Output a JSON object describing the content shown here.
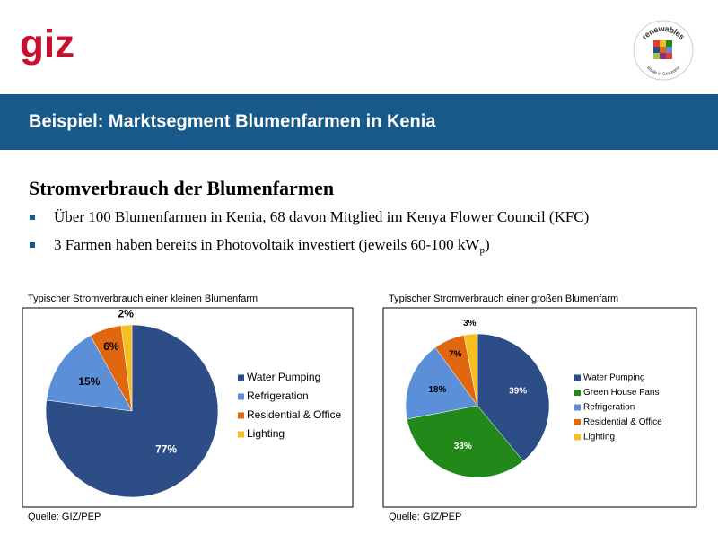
{
  "logo": "giz",
  "badge": {
    "top": "renewables",
    "bottom": "Made in Germany"
  },
  "header_title": "Beispiel: Marktsegment Blumenfarmen in Kenia",
  "heading": "Stromverbrauch der Blumenfarmen",
  "bullets": [
    {
      "text": "Über 100 Blumenfarmen in Kenia, 68 davon Mitglied im Kenya Flower Council (KFC)"
    },
    {
      "text": "3 Farmen haben bereits in Photovoltaik investiert (jeweils 60-100 kW",
      "subscript": "p",
      "end": ")"
    }
  ],
  "chart_data": [
    {
      "type": "pie",
      "title": "Typischer Stromverbrauch einer kleinen Blumenfarm",
      "categories": [
        "Water Pumping",
        "Refrigeration",
        "Residential & Office",
        "Lighting"
      ],
      "values": [
        77,
        15,
        6,
        2
      ],
      "value_labels": [
        "77%",
        "15%",
        "6%",
        "2%"
      ],
      "colors": [
        "#2c4d85",
        "#5b8fd8",
        "#e0660f",
        "#f6be1e"
      ],
      "label_colors": [
        "#ffffff",
        "#000000",
        "#000000",
        "#000000"
      ],
      "source": "Quelle: GIZ/PEP"
    },
    {
      "type": "pie",
      "title": "Typischer Stromverbrauch einer großen Blumenfarm",
      "categories": [
        "Water Pumping",
        "Green House Fans",
        "Refrigeration",
        "Residential & Office",
        "Lighting"
      ],
      "values": [
        39,
        33,
        18,
        7,
        3
      ],
      "value_labels": [
        "39%",
        "33%",
        "18%",
        "7%",
        "3%"
      ],
      "colors": [
        "#2c4d85",
        "#22881a",
        "#5b8fd8",
        "#e0660f",
        "#f6be1e"
      ],
      "label_colors": [
        "#ffffff",
        "#ffffff",
        "#000000",
        "#000000",
        "#000000"
      ],
      "source": "Quelle: GIZ/PEP"
    }
  ]
}
